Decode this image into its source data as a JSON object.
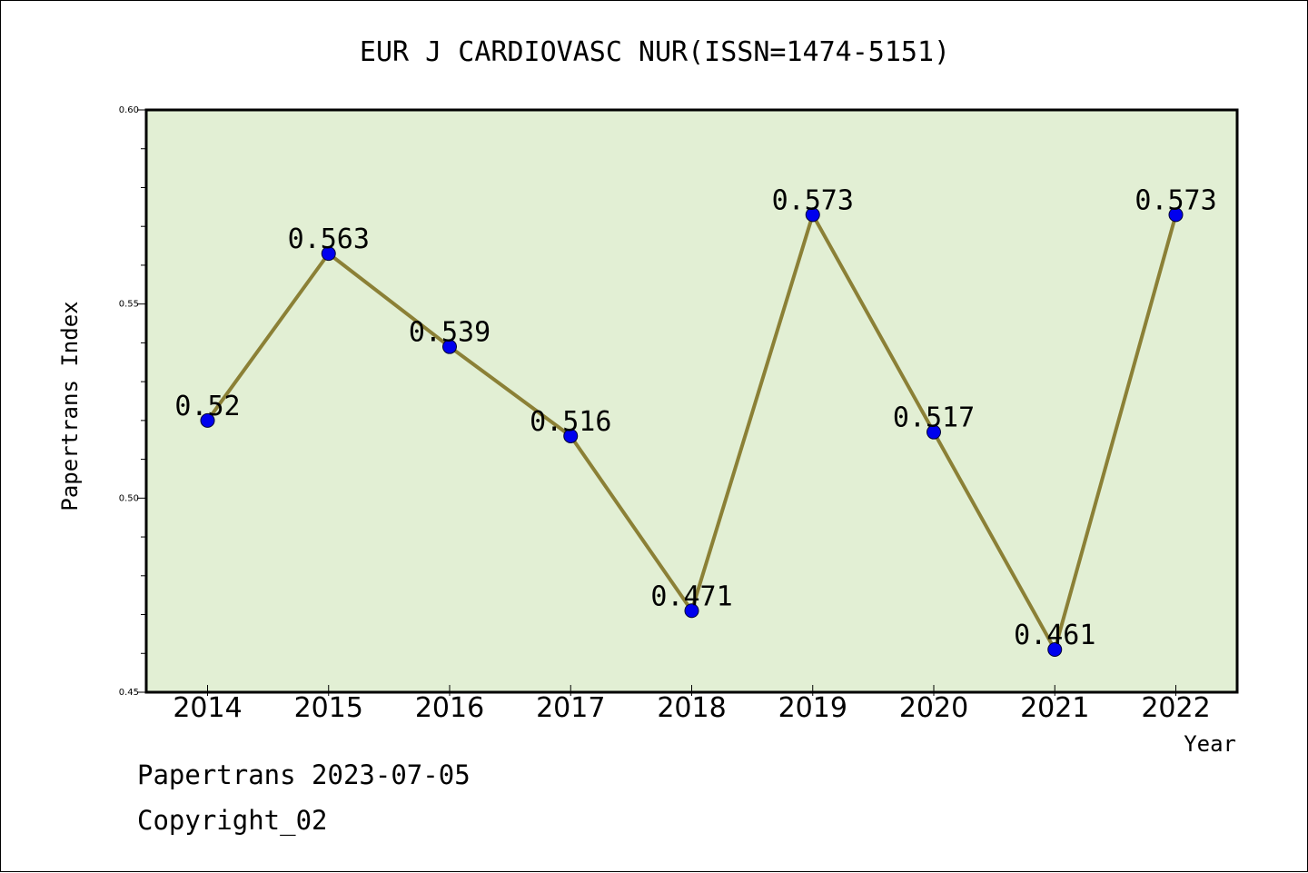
{
  "chart_data": {
    "type": "line",
    "title": "EUR J CARDIOVASC NUR(ISSN=1474-5151)",
    "xlabel": "Year",
    "ylabel": "Papertrans Index",
    "categories": [
      "2014",
      "2015",
      "2016",
      "2017",
      "2018",
      "2019",
      "2020",
      "2021",
      "2022"
    ],
    "values": [
      0.52,
      0.563,
      0.539,
      0.516,
      0.471,
      0.573,
      0.517,
      0.461,
      0.573
    ],
    "data_labels": [
      "0.52",
      "0.563",
      "0.539",
      "0.516",
      "0.471",
      "0.573",
      "0.517",
      "0.461",
      "0.573"
    ],
    "ylim": [
      0.45,
      0.6
    ],
    "yticks": [
      0.45,
      0.5,
      0.55,
      0.6
    ],
    "ytick_labels": [
      "0.45",
      "0.50",
      "0.55",
      "0.60"
    ],
    "grid": false,
    "colors": {
      "plot_background": "#e2efd4",
      "line": "#8b8036",
      "marker": "#0000ee"
    }
  },
  "footer": {
    "line1": "Papertrans 2023-07-05",
    "line2": "Copyright_02"
  }
}
